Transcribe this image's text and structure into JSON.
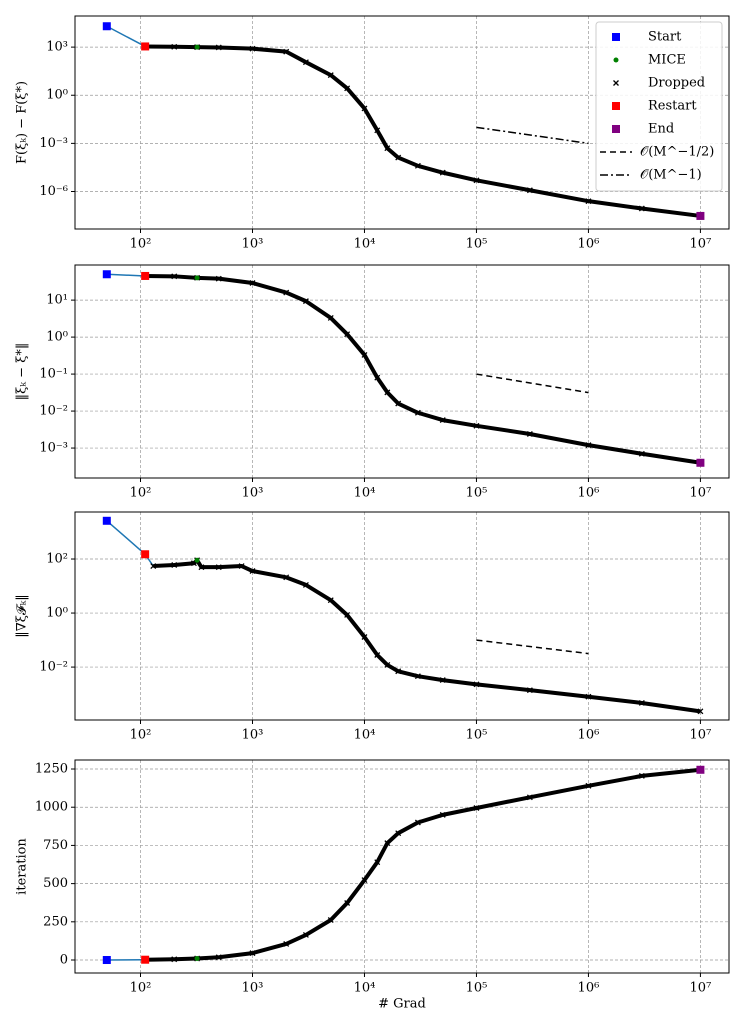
{
  "chart_data": [
    {
      "type": "line",
      "ylabel": "F(ξₖ) − F(ξ*)",
      "xscale": "log",
      "yscale": "log",
      "grid": true,
      "xlim": [
        26,
        18000000
      ],
      "ylim": [
        4.6e-09,
        87000
      ],
      "xticks": [
        {
          "value": 100,
          "label": "10²"
        },
        {
          "value": 1000,
          "label": "10³"
        },
        {
          "value": 10000,
          "label": "10⁴"
        },
        {
          "value": 100000,
          "label": "10⁵"
        },
        {
          "value": 1000000,
          "label": "10⁶"
        },
        {
          "value": 10000000,
          "label": "10⁷"
        }
      ],
      "yticks": [
        {
          "value": 1e-06,
          "label": "10⁻⁶"
        },
        {
          "value": 0.001,
          "label": "10⁻³"
        },
        {
          "value": 1,
          "label": "10⁰"
        },
        {
          "value": 1000,
          "label": "10³"
        }
      ],
      "series": [
        {
          "color": "#1f77b4",
          "linestyle": "solid",
          "linewidth": 1.5,
          "x": [
            50,
            110,
            200,
            320,
            500,
            1000,
            2000,
            3000,
            5000,
            7000,
            10000,
            13000,
            16000,
            20000,
            30000,
            50000,
            100000,
            300000,
            1000000,
            3000000,
            10000000
          ],
          "values": [
            20000,
            1100,
            1050,
            1000,
            950,
            800,
            520,
            115,
            18,
            2.7,
            0.15,
            0.0065,
            0.0005,
            0.00013,
            4e-05,
            1.5e-05,
            5e-06,
            1.2e-06,
            2.5e-07,
            8.7e-08,
            3e-08
          ]
        },
        {
          "color": "#000000",
          "linestyle": "solid",
          "linewidth": 4,
          "marker": "x",
          "x": [
            110,
            200,
            320,
            500,
            1000,
            2000,
            3000,
            5000,
            7000,
            10000,
            13000,
            16000,
            20000,
            30000,
            50000,
            100000,
            300000,
            1000000,
            3000000,
            10000000
          ],
          "values": [
            1100,
            1050,
            1000,
            950,
            800,
            520,
            115,
            18,
            2.7,
            0.15,
            0.0065,
            0.0005,
            0.00013,
            4e-05,
            1.5e-05,
            5e-06,
            1.2e-06,
            2.5e-07,
            8.7e-08,
            3e-08
          ]
        },
        {
          "color": "#000000",
          "linestyle": "dashdot",
          "linewidth": 1.5,
          "x": [
            100000,
            1000000
          ],
          "values": [
            0.01,
            0.001
          ]
        },
        {
          "color": "#008000",
          "marker": "o",
          "x": [
            320
          ],
          "values": [
            1000
          ]
        },
        {
          "color": "#0000ff",
          "marker": "s",
          "x": [
            50
          ],
          "values": [
            20000
          ]
        },
        {
          "color": "#ff0000",
          "marker": "s",
          "x": [
            110
          ],
          "values": [
            1100
          ]
        },
        {
          "color": "#800080",
          "marker": "s",
          "x": [
            10000000
          ],
          "values": [
            3e-08
          ]
        }
      ]
    },
    {
      "type": "line",
      "ylabel": "‖ξₖ − ξ*‖",
      "xscale": "log",
      "yscale": "log",
      "grid": true,
      "xlim": [
        26,
        18000000
      ],
      "ylim": [
        0.000155,
        89
      ],
      "xticks": [
        {
          "value": 100,
          "label": "10²"
        },
        {
          "value": 1000,
          "label": "10³"
        },
        {
          "value": 10000,
          "label": "10⁴"
        },
        {
          "value": 100000,
          "label": "10⁵"
        },
        {
          "value": 1000000,
          "label": "10⁶"
        },
        {
          "value": 10000000,
          "label": "10⁷"
        }
      ],
      "yticks": [
        {
          "value": 0.001,
          "label": "10⁻³"
        },
        {
          "value": 0.01,
          "label": "10⁻²"
        },
        {
          "value": 0.1,
          "label": "10⁻¹"
        },
        {
          "value": 1,
          "label": "10⁰"
        },
        {
          "value": 10,
          "label": "10¹"
        }
      ],
      "series": [
        {
          "color": "#1f77b4",
          "linestyle": "solid",
          "linewidth": 1.5,
          "x": [
            50,
            110,
            200,
            320,
            500,
            1000,
            2000,
            3000,
            5000,
            7000,
            10000,
            13000,
            16000,
            20000,
            30000,
            50000,
            100000,
            300000,
            1000000,
            3000000,
            10000000
          ],
          "values": [
            50,
            45,
            44,
            40,
            38,
            29,
            16,
            9.4,
            3.3,
            1.2,
            0.33,
            0.08,
            0.032,
            0.016,
            0.009,
            0.0057,
            0.004,
            0.0024,
            0.0012,
            0.0007,
            0.0004
          ]
        },
        {
          "color": "#000000",
          "linestyle": "solid",
          "linewidth": 4,
          "marker": "x",
          "x": [
            110,
            200,
            320,
            500,
            1000,
            2000,
            3000,
            5000,
            7000,
            10000,
            13000,
            16000,
            20000,
            30000,
            50000,
            100000,
            300000,
            1000000,
            3000000,
            10000000
          ],
          "values": [
            45,
            44,
            40,
            38,
            29,
            16,
            9.4,
            3.3,
            1.2,
            0.33,
            0.08,
            0.032,
            0.016,
            0.009,
            0.0057,
            0.004,
            0.0024,
            0.0012,
            0.0007,
            0.0004
          ]
        },
        {
          "color": "#000000",
          "linestyle": "dashed",
          "linewidth": 1.5,
          "x": [
            100000,
            1000000
          ],
          "values": [
            0.1,
            0.0316
          ]
        },
        {
          "color": "#008000",
          "marker": "o",
          "x": [
            320
          ],
          "values": [
            40
          ]
        },
        {
          "color": "#0000ff",
          "marker": "s",
          "x": [
            50
          ],
          "values": [
            50
          ]
        },
        {
          "color": "#ff0000",
          "marker": "s",
          "x": [
            110
          ],
          "values": [
            45
          ]
        },
        {
          "color": "#800080",
          "marker": "s",
          "x": [
            10000000
          ],
          "values": [
            0.0004
          ]
        }
      ]
    },
    {
      "type": "line",
      "ylabel": "‖∇ξ𝓕ₖ‖",
      "xscale": "log",
      "yscale": "log",
      "grid": true,
      "xlim": [
        26,
        18000000
      ],
      "ylim": [
        0.00011,
        5500
      ],
      "xticks": [
        {
          "value": 100,
          "label": "10²"
        },
        {
          "value": 1000,
          "label": "10³"
        },
        {
          "value": 10000,
          "label": "10⁴"
        },
        {
          "value": 100000,
          "label": "10⁵"
        },
        {
          "value": 1000000,
          "label": "10⁶"
        },
        {
          "value": 10000000,
          "label": "10⁷"
        }
      ],
      "yticks": [
        {
          "value": 0.01,
          "label": "10⁻²"
        },
        {
          "value": 1,
          "label": "10⁰"
        },
        {
          "value": 100,
          "label": "10²"
        }
      ],
      "series": [
        {
          "color": "#1f77b4",
          "linestyle": "solid",
          "linewidth": 1.5,
          "x": [
            50,
            110,
            130,
            200,
            300,
            320,
            350,
            500,
            800,
            1000,
            2000,
            3000,
            5000,
            7000,
            10000,
            13000,
            16000,
            20000,
            30000,
            50000,
            100000,
            300000,
            1000000,
            3000000,
            10000000
          ],
          "values": [
            2600,
            150,
            55,
            60,
            70,
            90,
            50,
            50,
            55,
            36,
            21,
            11,
            3,
            0.85,
            0.13,
            0.028,
            0.012,
            0.007,
            0.0046,
            0.0033,
            0.0023,
            0.0014,
            0.0008,
            0.00047,
            0.00023
          ]
        },
        {
          "color": "#000000",
          "linestyle": "solid",
          "linewidth": 4,
          "marker": "x",
          "x": [
            130,
            200,
            300,
            320,
            350,
            500,
            800,
            1000,
            2000,
            3000,
            5000,
            7000,
            10000,
            13000,
            16000,
            20000,
            30000,
            50000,
            100000,
            300000,
            1000000,
            3000000,
            10000000
          ],
          "values": [
            55,
            60,
            70,
            90,
            50,
            50,
            55,
            36,
            21,
            11,
            3,
            0.85,
            0.13,
            0.028,
            0.012,
            0.007,
            0.0046,
            0.0033,
            0.0023,
            0.0014,
            0.0008,
            0.00047,
            0.00023
          ]
        },
        {
          "color": "#000000",
          "linestyle": "dashed",
          "linewidth": 1.5,
          "x": [
            100000,
            1000000
          ],
          "values": [
            0.1,
            0.0316
          ]
        },
        {
          "color": "#008000",
          "marker": "o",
          "x": [
            320
          ],
          "values": [
            90
          ]
        },
        {
          "color": "#0000ff",
          "marker": "s",
          "x": [
            50
          ],
          "values": [
            2600
          ]
        },
        {
          "color": "#ff0000",
          "marker": "s",
          "x": [
            110
          ],
          "values": [
            150
          ]
        }
      ]
    },
    {
      "type": "line",
      "ylabel": "iteration",
      "xlabel": "# Grad",
      "xscale": "log",
      "yscale": "linear",
      "grid": true,
      "xlim": [
        26,
        18000000
      ],
      "ylim": [
        -85,
        1309
      ],
      "xticks": [
        {
          "value": 100,
          "label": "10²"
        },
        {
          "value": 1000,
          "label": "10³"
        },
        {
          "value": 10000,
          "label": "10⁴"
        },
        {
          "value": 100000,
          "label": "10⁵"
        },
        {
          "value": 1000000,
          "label": "10⁶"
        },
        {
          "value": 10000000,
          "label": "10⁷"
        }
      ],
      "yticks": [
        0,
        250,
        500,
        750,
        1000,
        1250
      ],
      "series": [
        {
          "color": "#1f77b4",
          "linestyle": "solid",
          "linewidth": 1.5,
          "x": [
            50,
            110,
            200,
            320,
            500,
            1000,
            2000,
            3000,
            5000,
            7000,
            10000,
            13000,
            16000,
            20000,
            30000,
            50000,
            100000,
            300000,
            1000000,
            3000000,
            10000000
          ],
          "values": [
            0,
            2,
            5,
            10,
            18,
            45,
            105,
            164,
            262,
            373,
            523,
            640,
            765,
            830,
            900,
            950,
            995,
            1065,
            1140,
            1205,
            1245
          ]
        },
        {
          "color": "#000000",
          "linestyle": "solid",
          "linewidth": 4,
          "marker": "x",
          "x": [
            110,
            200,
            320,
            500,
            1000,
            2000,
            3000,
            5000,
            7000,
            10000,
            13000,
            16000,
            20000,
            30000,
            50000,
            100000,
            300000,
            1000000,
            3000000,
            10000000
          ],
          "values": [
            2,
            5,
            10,
            18,
            45,
            105,
            164,
            262,
            373,
            523,
            640,
            765,
            830,
            900,
            950,
            995,
            1065,
            1140,
            1205,
            1245
          ]
        },
        {
          "color": "#008000",
          "marker": "o",
          "x": [
            320
          ],
          "values": [
            10
          ]
        },
        {
          "color": "#0000ff",
          "marker": "s",
          "x": [
            50
          ],
          "values": [
            0
          ]
        },
        {
          "color": "#ff0000",
          "marker": "s",
          "x": [
            110
          ],
          "values": [
            2
          ]
        },
        {
          "color": "#800080",
          "marker": "s",
          "x": [
            10000000
          ],
          "values": [
            1245
          ]
        }
      ]
    }
  ],
  "legend": {
    "position": "upper right",
    "entries": [
      {
        "name": "Start",
        "color": "#0000ff",
        "marker": "s"
      },
      {
        "name": "MICE",
        "color": "#008000",
        "marker": "o"
      },
      {
        "name": "Dropped",
        "color": "#000000",
        "marker": "x"
      },
      {
        "name": "Restart",
        "color": "#ff0000",
        "marker": "s"
      },
      {
        "name": "End",
        "color": "#800080",
        "marker": "s"
      },
      {
        "name": "𝒪(M^−1/2)",
        "color": "#000000",
        "linestyle": "dashed"
      },
      {
        "name": "𝒪(M^−1)",
        "color": "#000000",
        "linestyle": "dashdot"
      }
    ]
  }
}
